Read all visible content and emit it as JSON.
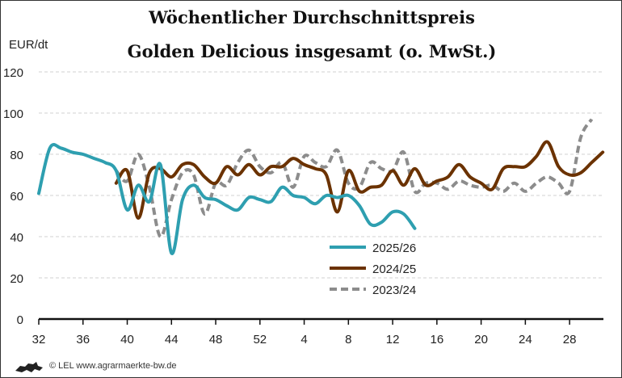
{
  "chart_data": {
    "type": "line",
    "title": "Wöchentlicher Durchschnittspreis",
    "subtitle": "Golden Delicious insgesamt (o. MwSt.)",
    "ylabel": "EUR/dt",
    "xlabel": "",
    "ylim": [
      0,
      120
    ],
    "yticks": [
      0,
      20,
      40,
      60,
      80,
      100,
      120
    ],
    "x_weeks": [
      32,
      33,
      34,
      35,
      36,
      37,
      38,
      39,
      40,
      41,
      42,
      43,
      44,
      45,
      46,
      47,
      48,
      49,
      50,
      51,
      52,
      1,
      2,
      3,
      4,
      5,
      6,
      7,
      8,
      9,
      10,
      11,
      12,
      13,
      14,
      15,
      16,
      17,
      18,
      19,
      20,
      21,
      22,
      23,
      24,
      25,
      26,
      27,
      28,
      29,
      30,
      31
    ],
    "xticks": [
      "32",
      "36",
      "40",
      "44",
      "48",
      "52",
      "4",
      "8",
      "12",
      "16",
      "20",
      "24",
      "28"
    ],
    "grid": "horizontal dashed",
    "legend": "center",
    "series": [
      {
        "name": "2025/26",
        "color": "#2e9fb0",
        "dashed": false,
        "start_week": 32,
        "values": [
          61,
          83,
          83,
          81,
          80,
          78,
          76,
          72,
          53,
          65,
          57,
          75,
          32,
          58,
          65,
          59,
          58,
          55,
          53,
          59,
          58,
          57,
          64,
          60,
          59,
          56,
          60,
          59,
          60,
          55,
          46,
          47,
          52,
          51,
          44
        ]
      },
      {
        "name": "2024/25",
        "color": "#6b3200",
        "dashed": false,
        "start_week": 39,
        "values": [
          66,
          72,
          49,
          71,
          73,
          69,
          75,
          75,
          69,
          66,
          74,
          70,
          75,
          70,
          74,
          74,
          78,
          75,
          73,
          70,
          52,
          72,
          62,
          64,
          65,
          72,
          65,
          73,
          65,
          67,
          69,
          75,
          69,
          66,
          63,
          73,
          74,
          74,
          79,
          86,
          74,
          70,
          71,
          76,
          81
        ]
      },
      {
        "name": "2023/24",
        "color": "#8c8c8c",
        "dashed": true,
        "start_week": 39,
        "values": [
          72,
          67,
          80,
          64,
          40,
          58,
          71,
          70,
          51,
          66,
          65,
          76,
          82,
          74,
          71,
          76,
          64,
          79,
          76,
          74,
          82,
          66,
          64,
          76,
          73,
          72,
          81,
          62,
          66,
          66,
          63,
          67,
          65,
          64,
          65,
          62,
          66,
          62,
          66,
          69,
          66,
          62,
          88,
          97
        ]
      }
    ]
  },
  "footer": {
    "credit": "© LEL www.agrarmaerkte-bw.de"
  }
}
